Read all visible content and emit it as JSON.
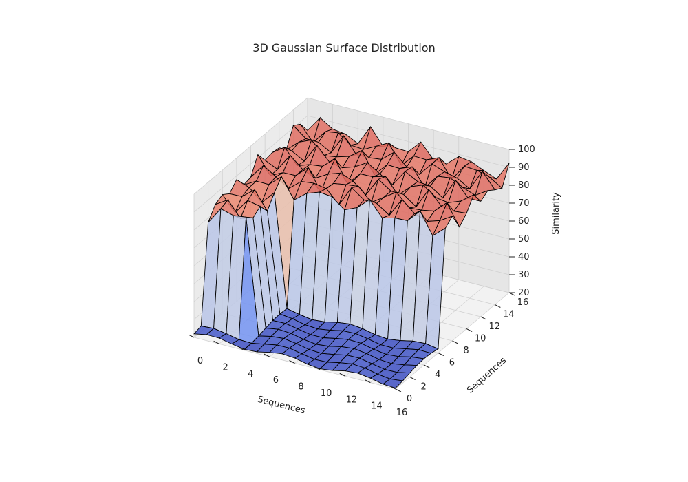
{
  "chart_data": {
    "type": "surface3d",
    "title": "3D Gaussian Surface Distribution",
    "xlabel": "Sequences",
    "ylabel": "Sequences",
    "zlabel": "Similarity",
    "xlim": [
      0,
      16
    ],
    "ylim": [
      0,
      16
    ],
    "zlim": [
      20,
      100
    ],
    "x_ticks": [
      "0",
      "2",
      "4",
      "6",
      "8",
      "10",
      "12",
      "14",
      "16"
    ],
    "y_ticks": [
      "0",
      "2",
      "4",
      "6",
      "8",
      "10",
      "12",
      "14",
      "16"
    ],
    "z_ticks": [
      "20",
      "30",
      "40",
      "50",
      "60",
      "70",
      "80",
      "90",
      "100"
    ],
    "colormap": "coolwarm",
    "grid": true,
    "edge_color": "#000000",
    "description": "Surface is high (about 80–100) in the back corner region and in a small ridge near x≈1–3, and drops sharply to a low plateau (about 20–25) over the front region."
  }
}
